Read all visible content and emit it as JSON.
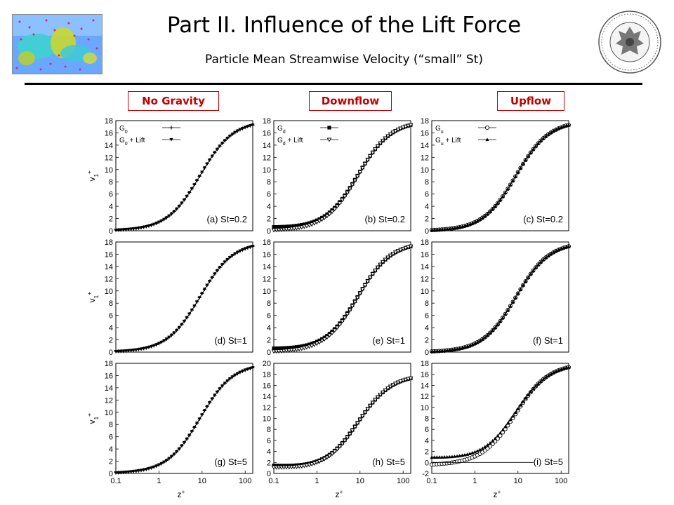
{
  "slide": {
    "title": "Part II. Influence of the Lift Force",
    "subtitle": "Particle Mean Streamwise Velocity (“small” St)",
    "column_headers": [
      "No Gravity",
      "Downflow",
      "Upflow"
    ],
    "header_color": "#c00000"
  },
  "axes_labels": {
    "y_base": "v",
    "y_sub": "1",
    "y_sup": "+",
    "x_base": "z",
    "x_sup": "+"
  },
  "chart_data": [
    {
      "id": "a",
      "type": "line",
      "panel_label": "(a) St=0.2",
      "xscale": "log",
      "xlim": [
        0.1,
        150
      ],
      "ylim": [
        0,
        18
      ],
      "yticks": [
        0,
        2,
        4,
        6,
        8,
        10,
        12,
        14,
        16,
        18
      ],
      "xticks": [],
      "legend": [
        {
          "name": "G",
          "sub": "0",
          "suffix": "",
          "marker": "plus"
        },
        {
          "name": "G",
          "sub": "0",
          "suffix": " + Lift",
          "marker": "tri-down"
        }
      ],
      "series": [
        {
          "name": "G0",
          "marker": "plus",
          "shift": 0
        },
        {
          "name": "G0 + Lift",
          "marker": "tri-down",
          "shift": 0
        }
      ]
    },
    {
      "id": "b",
      "type": "line",
      "panel_label": "(b) St=0.2",
      "xscale": "log",
      "xlim": [
        0.1,
        150
      ],
      "ylim": [
        0,
        18
      ],
      "yticks": [
        0,
        2,
        4,
        6,
        8,
        10,
        12,
        14,
        16,
        18
      ],
      "xticks": [],
      "legend": [
        {
          "name": "G",
          "sub": "d",
          "suffix": "",
          "marker": "square"
        },
        {
          "name": "G",
          "sub": "d",
          "suffix": " + Lift",
          "marker": "tri-down-open"
        }
      ],
      "series": [
        {
          "name": "Gd",
          "marker": "square",
          "shift": 0.3
        },
        {
          "name": "Gd + Lift",
          "marker": "tri-down-open",
          "shift": 0
        }
      ]
    },
    {
      "id": "c",
      "type": "line",
      "panel_label": "(c) St=0.2",
      "xscale": "log",
      "xlim": [
        0.1,
        150
      ],
      "ylim": [
        0,
        18
      ],
      "yticks": [
        0,
        2,
        4,
        6,
        8,
        10,
        12,
        14,
        16,
        18
      ],
      "xticks": [],
      "legend": [
        {
          "name": "G",
          "sub": "u",
          "suffix": "",
          "marker": "circle-open"
        },
        {
          "name": "G",
          "sub": "u",
          "suffix": " + Lift",
          "marker": "tri-up"
        }
      ],
      "series": [
        {
          "name": "Gu",
          "marker": "circle-open",
          "shift": 0
        },
        {
          "name": "Gu + Lift",
          "marker": "tri-up",
          "shift": 0
        }
      ]
    },
    {
      "id": "d",
      "type": "line",
      "panel_label": "(d) St=1",
      "xscale": "log",
      "xlim": [
        0.1,
        150
      ],
      "ylim": [
        0,
        18
      ],
      "yticks": [
        0,
        2,
        4,
        6,
        8,
        10,
        12,
        14,
        16,
        18
      ],
      "xticks": [],
      "legend": [],
      "series": [
        {
          "name": "G0",
          "marker": "plus",
          "shift": 0
        },
        {
          "name": "G0 + Lift",
          "marker": "tri-down",
          "shift": 0
        }
      ]
    },
    {
      "id": "e",
      "type": "line",
      "panel_label": "(e) St=1",
      "xscale": "log",
      "xlim": [
        0.1,
        150
      ],
      "ylim": [
        0,
        18
      ],
      "yticks": [
        0,
        2,
        4,
        6,
        8,
        10,
        12,
        14,
        16,
        18
      ],
      "xticks": [],
      "legend": [],
      "series": [
        {
          "name": "Gd",
          "marker": "square",
          "shift": 0.3
        },
        {
          "name": "Gd + Lift",
          "marker": "tri-down-open",
          "shift": 0
        }
      ]
    },
    {
      "id": "f",
      "type": "line",
      "panel_label": "(f) St=1",
      "xscale": "log",
      "xlim": [
        0.1,
        150
      ],
      "ylim": [
        0,
        18
      ],
      "yticks": [
        0,
        2,
        4,
        6,
        8,
        10,
        12,
        14,
        16,
        18
      ],
      "xticks": [],
      "legend": [],
      "series": [
        {
          "name": "Gu",
          "marker": "circle-open",
          "shift": 0
        },
        {
          "name": "Gu + Lift",
          "marker": "tri-up",
          "shift": 0
        }
      ]
    },
    {
      "id": "g",
      "type": "line",
      "panel_label": "(g) St=5",
      "xscale": "log",
      "xlim": [
        0.1,
        150
      ],
      "ylim": [
        0,
        18
      ],
      "yticks": [
        0,
        2,
        4,
        6,
        8,
        10,
        12,
        14,
        16,
        18
      ],
      "xticks": [
        "0.1",
        "1",
        "10",
        "100"
      ],
      "legend": [],
      "series": [
        {
          "name": "G0",
          "marker": "plus",
          "shift": 0
        },
        {
          "name": "G0 + Lift",
          "marker": "tri-down",
          "shift": 0
        }
      ]
    },
    {
      "id": "h",
      "type": "line",
      "panel_label": "(h) St=5",
      "xscale": "log",
      "xlim": [
        0.1,
        150
      ],
      "ylim": [
        0,
        20
      ],
      "yticks": [
        0,
        2,
        4,
        6,
        8,
        10,
        12,
        14,
        16,
        18,
        20
      ],
      "xticks": [
        "0.1",
        "1",
        "10",
        "100"
      ],
      "legend": [],
      "series": [
        {
          "name": "Gd",
          "marker": "square",
          "shift": 0.8
        },
        {
          "name": "Gd + Lift",
          "marker": "tri-down-open",
          "shift": 0.6
        }
      ]
    },
    {
      "id": "i",
      "type": "line",
      "panel_label": "(i) St=5",
      "xscale": "log",
      "xlim": [
        0.1,
        150
      ],
      "ylim": [
        -2,
        18
      ],
      "yticks": [
        -2,
        0,
        2,
        4,
        6,
        8,
        10,
        12,
        14,
        16,
        18
      ],
      "xticks": [
        "0.1",
        "1",
        "10",
        "100"
      ],
      "legend": [],
      "series": [
        {
          "name": "Gu",
          "marker": "circle-open",
          "shift": -0.3
        },
        {
          "name": "Gu + Lift",
          "marker": "tri-up",
          "shift": 0.5
        }
      ]
    }
  ]
}
